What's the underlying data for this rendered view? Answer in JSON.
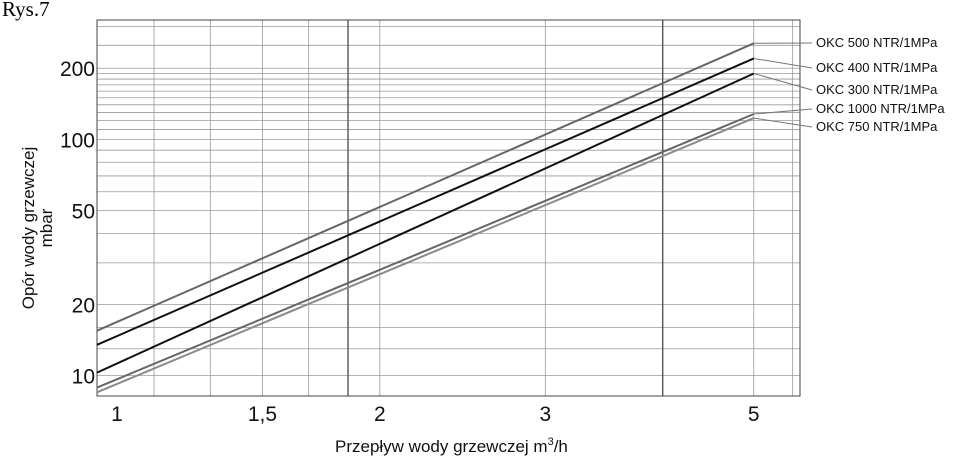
{
  "caption": "Rys.7",
  "chart_data": {
    "type": "line",
    "xscale": "log",
    "yscale": "log",
    "xlabel": "Przepływ wody grzewczej m",
    "xlabel_sup": "3",
    "xlabel_tail": "/h",
    "ylabel_line1": "Opór wody grzewczej",
    "ylabel_line2": "mbar",
    "xlim": [
      1,
      5.6
    ],
    "ylim": [
      8.2,
      320
    ],
    "x_tick_labels": [
      {
        "value": 1,
        "label": "1"
      },
      {
        "value": 1.5,
        "label": "1,5"
      },
      {
        "value": 2,
        "label": "2"
      },
      {
        "value": 3,
        "label": "3"
      },
      {
        "value": 5,
        "label": "5"
      }
    ],
    "y_tick_labels": [
      {
        "value": 10,
        "label": "10"
      },
      {
        "value": 20,
        "label": "20"
      },
      {
        "value": 50,
        "label": "50"
      },
      {
        "value": 100,
        "label": "100"
      },
      {
        "value": 200,
        "label": "200"
      }
    ],
    "x_gridlines": [
      1.15,
      1.32,
      1.5,
      1.68,
      1.85,
      2,
      3,
      4,
      5,
      5.5
    ],
    "y_gridlines": [
      10,
      13,
      16,
      20,
      30,
      40,
      50,
      60,
      70,
      80,
      90,
      100,
      110,
      120,
      130,
      140,
      150,
      160,
      170,
      180,
      190,
      200,
      250,
      300
    ],
    "x_gridlines_strong": [
      1.85,
      4
    ],
    "series": [
      {
        "name": "OKC 500 NTR/1MPa",
        "color": "#666666",
        "x": [
          1,
          5
        ],
        "y": [
          15.5,
          255
        ]
      },
      {
        "name": "OKC 400 NTR/1MPa",
        "color": "#111111",
        "x": [
          1,
          5
        ],
        "y": [
          13.5,
          220
        ]
      },
      {
        "name": "OKC 300 NTR/1MPa",
        "color": "#111111",
        "x": [
          1,
          5
        ],
        "y": [
          10.3,
          190
        ]
      },
      {
        "name": "OKC 1000 NTR/1MPa",
        "color": "#666666",
        "x": [
          1,
          5
        ],
        "y": [
          8.9,
          128
        ]
      },
      {
        "name": "OKC 750 NTR/1MPa",
        "color": "#8a8a8a",
        "x": [
          1,
          5
        ],
        "y": [
          8.5,
          123
        ]
      }
    ],
    "grid": true,
    "legend_position": "right"
  }
}
